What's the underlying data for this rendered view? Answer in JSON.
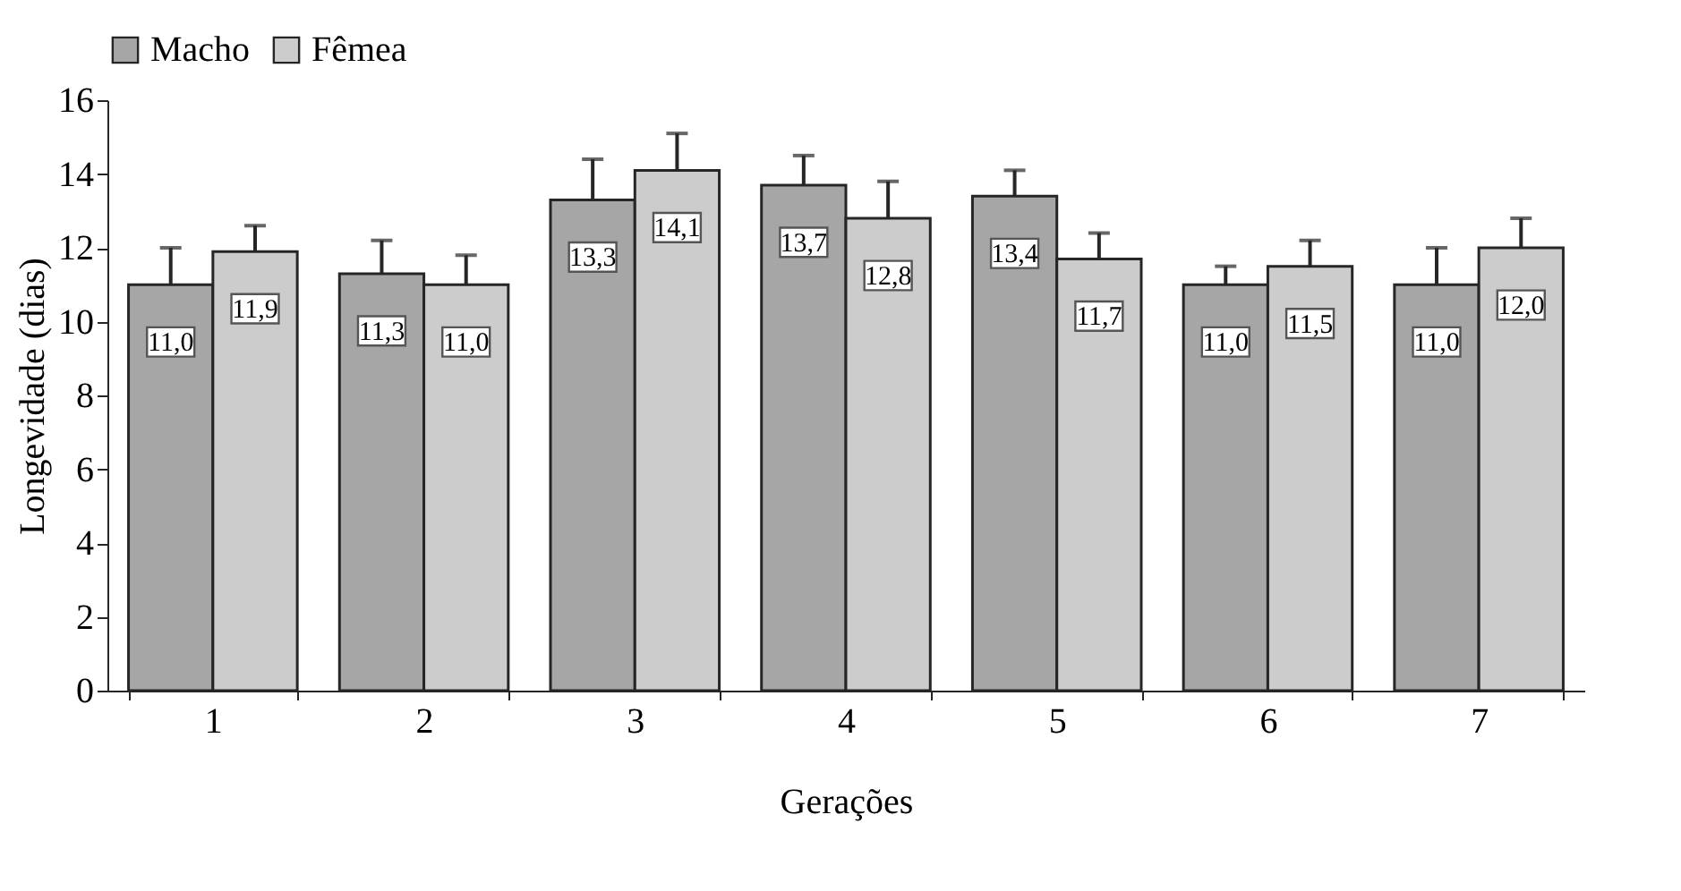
{
  "chart_data": {
    "type": "bar",
    "xlabel": "Gerações",
    "ylabel": "Longevidade (dias)",
    "categories": [
      "1",
      "2",
      "3",
      "4",
      "5",
      "6",
      "7"
    ],
    "series": [
      {
        "name": "Macho",
        "color": "#a6a6a6",
        "values": [
          11.0,
          11.3,
          13.3,
          13.7,
          13.4,
          11.0,
          11.0
        ],
        "value_labels": [
          "11,0",
          "11,3",
          "13,3",
          "13,7",
          "13,4",
          "11,0",
          "11,0"
        ],
        "errors": [
          [
            11.0,
            12.0
          ],
          [
            11.3,
            12.2
          ],
          [
            13.3,
            14.4
          ],
          [
            13.7,
            14.5
          ],
          [
            13.4,
            14.1
          ],
          [
            11.0,
            11.5
          ],
          [
            11.0,
            12.0
          ]
        ]
      },
      {
        "name": "Fêmea",
        "color": "#cccccc",
        "values": [
          11.9,
          11.0,
          14.1,
          12.8,
          11.7,
          11.5,
          12.0
        ],
        "value_labels": [
          "11,9",
          "11,0",
          "14,1",
          "12,8",
          "11,7",
          "11,5",
          "12,0"
        ],
        "errors": [
          [
            11.9,
            12.6
          ],
          [
            11.0,
            11.8
          ],
          [
            14.1,
            15.1
          ],
          [
            12.8,
            13.8
          ],
          [
            11.7,
            12.4
          ],
          [
            11.5,
            12.2
          ],
          [
            12.0,
            12.8
          ]
        ]
      }
    ],
    "ylim": [
      0,
      16
    ],
    "yticks": [
      0,
      2,
      4,
      6,
      8,
      10,
      12,
      14,
      16
    ],
    "legend": "top",
    "grid": false
  }
}
